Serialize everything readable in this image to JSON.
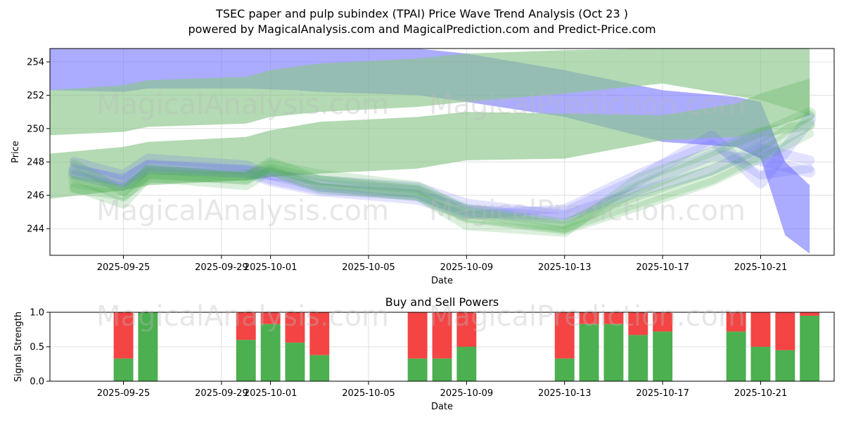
{
  "title_line1": "TSEC paper and pulp subindex (TPAI) Price Wave Trend Analysis (Oct 23 )",
  "title_line2": "powered by MagicalAnalysis.com and MagicalPrediction.com and Predict-Price.com",
  "watermarks": [
    "MagicalAnalysis.com",
    "MagicalPrediction.com"
  ],
  "colors": {
    "green": "#4caf50",
    "red": "#f44444",
    "blue": "#6666ff",
    "green_band": "#8bc68b",
    "grid": "#e0e0e0"
  },
  "chart_data": [
    {
      "type": "area",
      "title": "",
      "xlabel": "Date",
      "ylabel": "Price",
      "x_tick_labels": [
        "2025-09-25",
        "2025-09-29",
        "2025-10-01",
        "2025-10-05",
        "2025-10-09",
        "2025-10-13",
        "2025-10-17",
        "2025-10-21"
      ],
      "x_tick_dates": [
        "2025-09-25",
        "2025-09-29",
        "2025-10-01",
        "2025-10-05",
        "2025-10-09",
        "2025-10-13",
        "2025-10-17",
        "2025-10-21"
      ],
      "y_ticks": [
        244,
        246,
        248,
        250,
        252,
        254
      ],
      "ylim": [
        242.4,
        254.8
      ],
      "xlim": [
        "2025-09-22",
        "2025-10-24"
      ],
      "grid": true,
      "bands": [
        {
          "color": "blue",
          "opacity": 0.55,
          "dates": [
            "2025-09-22",
            "2025-09-25",
            "2025-09-26",
            "2025-09-30",
            "2025-10-02",
            "2025-10-03",
            "2025-10-07",
            "2025-10-09",
            "2025-10-13",
            "2025-10-17",
            "2025-10-20",
            "2025-10-21",
            "2025-10-22",
            "2025-10-23"
          ],
          "upper": [
            254.8,
            254.8,
            254.8,
            254.8,
            254.8,
            254.8,
            254.8,
            254.5,
            253.5,
            252.3,
            251.9,
            251.6,
            248,
            246.6
          ],
          "lower": [
            252.3,
            252.2,
            252.4,
            252.4,
            252.3,
            252.2,
            252.0,
            251.6,
            250.7,
            249.2,
            248.9,
            248.2,
            243.6,
            242.5
          ]
        },
        {
          "color": "green_band",
          "opacity": 0.65,
          "dates": [
            "2025-09-22",
            "2025-09-25",
            "2025-09-26",
            "2025-09-30",
            "2025-10-01",
            "2025-10-03",
            "2025-10-07",
            "2025-10-09",
            "2025-10-13",
            "2025-10-17",
            "2025-10-21",
            "2025-10-23"
          ],
          "upper": [
            252.3,
            252.6,
            252.9,
            253.1,
            253.5,
            253.9,
            254.2,
            254.5,
            254.7,
            254.8,
            254.8,
            254.8
          ],
          "lower": [
            249.6,
            249.8,
            250.1,
            250.3,
            250.7,
            251.0,
            251.3,
            251.6,
            252.1,
            252.7,
            251.7,
            250.8
          ]
        },
        {
          "color": "green_band",
          "opacity": 0.65,
          "dates": [
            "2025-09-22",
            "2025-09-25",
            "2025-09-26",
            "2025-09-30",
            "2025-10-01",
            "2025-10-03",
            "2025-10-07",
            "2025-10-09",
            "2025-10-13",
            "2025-10-17",
            "2025-10-20",
            "2025-10-21",
            "2025-10-23"
          ],
          "upper": [
            248.5,
            248.9,
            249.2,
            249.5,
            249.9,
            250.4,
            250.7,
            251.0,
            250.9,
            250.8,
            251.5,
            252.1,
            253.0
          ],
          "lower": [
            245.8,
            246.3,
            246.6,
            246.9,
            247.1,
            247.3,
            247.6,
            248.1,
            248.2,
            249.3,
            249.5,
            249.8,
            250.8
          ]
        }
      ],
      "wave_lines": [
        {
          "color": "blue",
          "opacity": 0.18,
          "width": 14,
          "values": [
            248.0,
            247.2,
            248.2,
            247.8,
            247.2,
            246.9,
            246.5,
            245.5,
            244.8,
            246.2,
            247.5,
            248.8,
            248.1
          ]
        },
        {
          "color": "blue",
          "opacity": 0.18,
          "width": 16,
          "values": [
            247.6,
            246.8,
            247.8,
            247.5,
            247.0,
            246.4,
            246.0,
            245.1,
            244.6,
            246.6,
            248.4,
            248.1,
            247.4
          ]
        },
        {
          "color": "blue",
          "opacity": 0.18,
          "width": 12,
          "values": [
            247.2,
            246.5,
            247.5,
            247.3,
            246.8,
            246.2,
            245.7,
            244.8,
            245.2,
            247.3,
            249.1,
            247.2,
            247.6
          ]
        },
        {
          "color": "blue",
          "opacity": 0.18,
          "width": 18,
          "values": [
            247.4,
            246.9,
            247.7,
            247.4,
            247.3,
            246.6,
            246.2,
            245.0,
            244.9,
            246.9,
            249.5,
            246.8,
            250.6
          ]
        },
        {
          "color": "green",
          "opacity": 0.2,
          "width": 14,
          "values": [
            246.4,
            246.0,
            247.0,
            247.2,
            247.6,
            246.9,
            246.4,
            245.2,
            244.3,
            246.0,
            247.5,
            248.9,
            250.8
          ]
        },
        {
          "color": "green",
          "opacity": 0.2,
          "width": 16,
          "values": [
            246.8,
            246.3,
            247.3,
            247.0,
            247.8,
            247.2,
            246.5,
            245.0,
            244.1,
            245.6,
            247.0,
            248.5,
            250.3
          ]
        },
        {
          "color": "green",
          "opacity": 0.2,
          "width": 12,
          "values": [
            247.9,
            246.2,
            247.6,
            247.1,
            247.4,
            246.5,
            245.9,
            244.6,
            243.9,
            245.3,
            246.8,
            248.2,
            249.7
          ]
        },
        {
          "color": "green",
          "opacity": 0.2,
          "width": 18,
          "values": [
            247.2,
            246.0,
            247.4,
            247.0,
            247.9,
            246.8,
            246.2,
            244.8,
            244.1,
            246.4,
            248.2,
            249.6,
            250.9
          ]
        },
        {
          "color": "green",
          "opacity": 0.2,
          "width": 14,
          "values": [
            246.5,
            245.5,
            247.1,
            246.6,
            247.5,
            246.4,
            246.0,
            244.2,
            243.8,
            247.0,
            248.6,
            249.8,
            250.2
          ]
        }
      ],
      "wave_dates": [
        "2025-09-23",
        "2025-09-25",
        "2025-09-26",
        "2025-09-30",
        "2025-10-01",
        "2025-10-03",
        "2025-10-07",
        "2025-10-09",
        "2025-10-13",
        "2025-10-16",
        "2025-10-19",
        "2025-10-21",
        "2025-10-23"
      ]
    },
    {
      "type": "bar",
      "title": "Buy and Sell Powers",
      "xlabel": "Date",
      "ylabel": "Signal Strength",
      "x_tick_labels": [
        "2025-09-25",
        "2025-09-29",
        "2025-10-01",
        "2025-10-05",
        "2025-10-09",
        "2025-10-13",
        "2025-10-17",
        "2025-10-21"
      ],
      "x_tick_dates": [
        "2025-09-25",
        "2025-09-29",
        "2025-10-01",
        "2025-10-05",
        "2025-10-09",
        "2025-10-13",
        "2025-10-17",
        "2025-10-21"
      ],
      "y_tick_labels": [
        "0.0",
        "0.5",
        "1.0"
      ],
      "y_ticks": [
        0,
        0.5,
        1.0
      ],
      "ylim": [
        0,
        1
      ],
      "xlim": [
        "2025-09-22",
        "2025-10-24"
      ],
      "grid": true,
      "dates": [
        "2025-09-25",
        "2025-09-26",
        "2025-09-30",
        "2025-10-01",
        "2025-10-02",
        "2025-10-03",
        "2025-10-07",
        "2025-10-08",
        "2025-10-09",
        "2025-10-13",
        "2025-10-14",
        "2025-10-15",
        "2025-10-16",
        "2025-10-17",
        "2025-10-20",
        "2025-10-21",
        "2025-10-22",
        "2025-10-23"
      ],
      "series": [
        {
          "name": "Buy",
          "color": "green",
          "values": [
            0.33,
            1.0,
            0.6,
            0.83,
            0.56,
            0.38,
            0.33,
            0.33,
            0.5,
            0.33,
            0.83,
            0.83,
            0.67,
            0.72,
            0.72,
            0.5,
            0.45,
            0.95
          ]
        },
        {
          "name": "Sell",
          "color": "red",
          "values": [
            0.67,
            0.0,
            0.4,
            0.17,
            0.44,
            0.62,
            0.67,
            0.67,
            0.5,
            0.67,
            0.17,
            0.17,
            0.33,
            0.28,
            0.28,
            0.5,
            0.55,
            0.05
          ]
        }
      ]
    }
  ]
}
